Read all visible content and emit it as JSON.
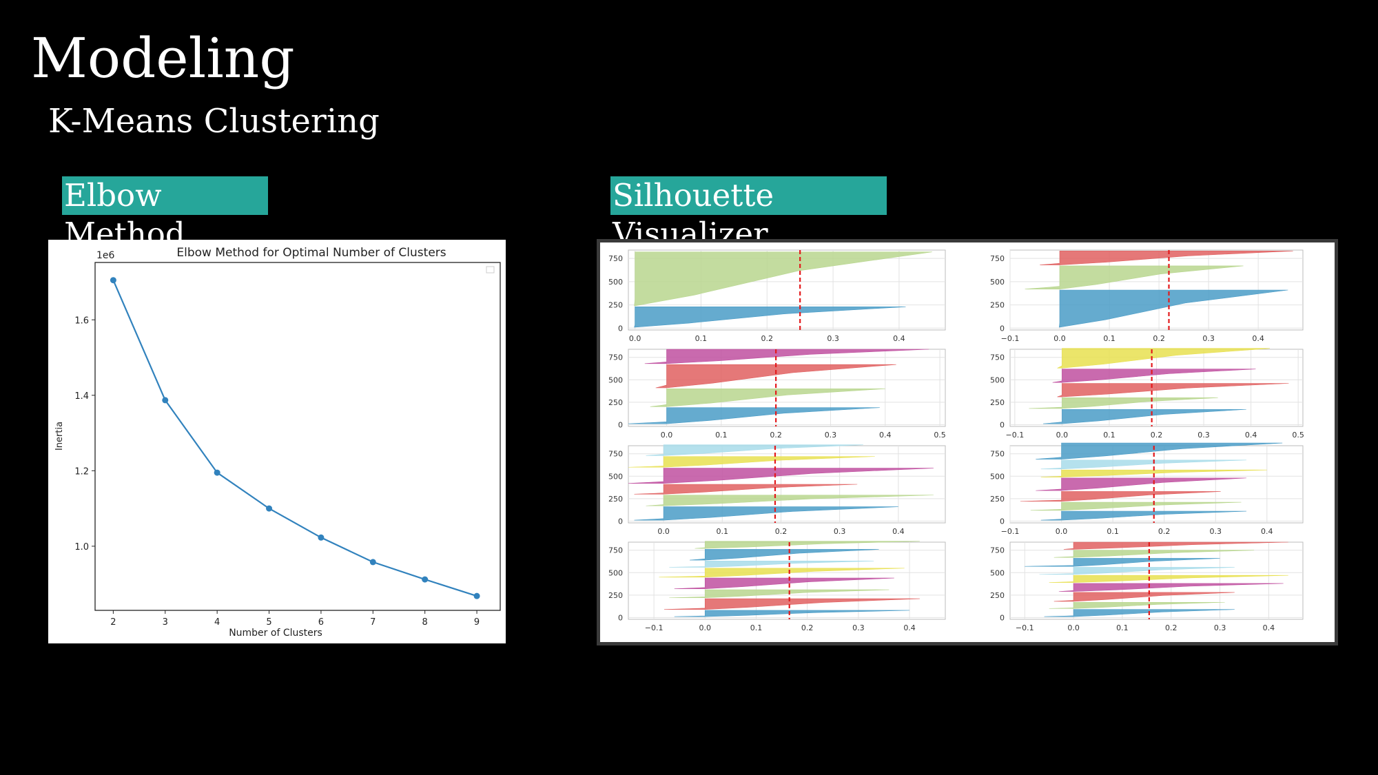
{
  "slide": {
    "title": "Modeling",
    "subtitle": "K-Means Clustering",
    "elbow_tag": "Elbow Method",
    "silhouette_tag": "Silhouette Visualizer"
  },
  "colors": {
    "background": "#000000",
    "tag_bg": "#26a69a",
    "line": "#3182bd",
    "mean_line": "#e31a1c",
    "cluster_blue": "#4a9cc7",
    "cluster_green": "#b8d68e",
    "cluster_red": "#e06060",
    "cluster_magenta": "#c050a0",
    "cluster_yellow": "#e8e050",
    "cluster_lightblue": "#a8dcea"
  },
  "chart_data": [
    {
      "type": "line",
      "title": "Elbow Method for Optimal Number of Clusters",
      "xlabel": "Number of Clusters",
      "ylabel": "Inertia",
      "y_offset_label": "1e6",
      "x": [
        2,
        3,
        4,
        5,
        6,
        7,
        8,
        9
      ],
      "values": [
        1.705,
        1.387,
        1.195,
        1.1,
        1.023,
        0.958,
        0.912,
        0.868
      ],
      "xlim": [
        1.65,
        9.45
      ],
      "ylim": [
        0.83,
        1.752
      ],
      "x_ticks": [
        "2",
        "3",
        "4",
        "5",
        "6",
        "7",
        "8",
        "9"
      ],
      "y_ticks": [
        1.0,
        1.2,
        1.4,
        1.6
      ],
      "y_tick_labels": [
        "1.0",
        "1.2",
        "1.4",
        "1.6"
      ],
      "marker": "circle",
      "grid": false
    },
    {
      "type": "silhouette",
      "y_ticks": [
        0,
        250,
        500,
        750
      ],
      "y_tick_labels": [
        "0",
        "250",
        "500",
        "750"
      ],
      "ylim": [
        -20,
        840
      ],
      "subplots": [
        {
          "xlim": [
            -0.01,
            0.47
          ],
          "x_ticks": [
            0.0,
            0.1,
            0.2,
            0.3,
            0.4
          ],
          "x_tick_labels": [
            "0.0",
            "0.1",
            "0.2",
            "0.3",
            "0.4"
          ],
          "mean": 0.25,
          "clusters": [
            {
              "size": 220,
              "max": 0.41,
              "min": -0.001,
              "color": "blue"
            },
            {
              "size": 580,
              "max": 0.45,
              "min": -0.001,
              "color": "green"
            }
          ]
        },
        {
          "xlim": [
            -0.1,
            0.49
          ],
          "x_ticks": [
            -0.1,
            0.0,
            0.1,
            0.2,
            0.3,
            0.4
          ],
          "x_tick_labels": [
            "−0.1",
            "0.0",
            "0.1",
            "0.2",
            "0.3",
            "0.4"
          ],
          "mean": 0.22,
          "clusters": [
            {
              "size": 400,
              "max": 0.46,
              "min": -0.001,
              "color": "blue"
            },
            {
              "size": 250,
              "max": 0.37,
              "min": -0.07,
              "color": "green"
            },
            {
              "size": 150,
              "max": 0.47,
              "min": -0.04,
              "color": "red"
            }
          ]
        },
        {
          "xlim": [
            -0.07,
            0.51
          ],
          "x_ticks": [
            0.0,
            0.1,
            0.2,
            0.3,
            0.4,
            0.5
          ],
          "x_tick_labels": [
            "0.0",
            "0.1",
            "0.2",
            "0.3",
            "0.4",
            "0.5"
          ],
          "mean": 0.2,
          "clusters": [
            {
              "size": 180,
              "max": 0.39,
              "min": -0.07,
              "color": "blue"
            },
            {
              "size": 200,
              "max": 0.4,
              "min": -0.03,
              "color": "green"
            },
            {
              "size": 260,
              "max": 0.42,
              "min": -0.02,
              "color": "red"
            },
            {
              "size": 160,
              "max": 0.48,
              "min": -0.04,
              "color": "magenta"
            }
          ]
        },
        {
          "xlim": [
            -0.11,
            0.51
          ],
          "x_ticks": [
            -0.1,
            0.0,
            0.1,
            0.2,
            0.3,
            0.4,
            0.5
          ],
          "x_tick_labels": [
            "−0.1",
            "0.0",
            "0.1",
            "0.2",
            "0.3",
            "0.4",
            "0.5"
          ],
          "mean": 0.19,
          "clusters": [
            {
              "size": 160,
              "max": 0.39,
              "min": -0.04,
              "color": "blue"
            },
            {
              "size": 120,
              "max": 0.33,
              "min": -0.07,
              "color": "green"
            },
            {
              "size": 150,
              "max": 0.48,
              "min": -0.01,
              "color": "red"
            },
            {
              "size": 150,
              "max": 0.41,
              "min": -0.02,
              "color": "magenta"
            },
            {
              "size": 220,
              "max": 0.44,
              "min": -0.01,
              "color": "yellow"
            }
          ]
        },
        {
          "xlim": [
            -0.06,
            0.48
          ],
          "x_ticks": [
            0.0,
            0.1,
            0.2,
            0.3,
            0.4
          ],
          "x_tick_labels": [
            "0.0",
            "0.1",
            "0.2",
            "0.3",
            "0.4"
          ],
          "mean": 0.19,
          "clusters": [
            {
              "size": 150,
              "max": 0.4,
              "min": -0.05,
              "color": "blue"
            },
            {
              "size": 120,
              "max": 0.46,
              "min": -0.03,
              "color": "green"
            },
            {
              "size": 110,
              "max": 0.33,
              "min": -0.05,
              "color": "red"
            },
            {
              "size": 170,
              "max": 0.46,
              "min": -0.06,
              "color": "magenta"
            },
            {
              "size": 120,
              "max": 0.36,
              "min": -0.06,
              "color": "yellow"
            },
            {
              "size": 120,
              "max": 0.34,
              "min": -0.03,
              "color": "lightblue"
            }
          ]
        },
        {
          "xlim": [
            -0.1,
            0.47
          ],
          "x_ticks": [
            -0.1,
            0.0,
            0.1,
            0.2,
            0.3,
            0.4
          ],
          "x_tick_labels": [
            "−0.1",
            "0.0",
            "0.1",
            "0.2",
            "0.3",
            "0.4"
          ],
          "mean": 0.18,
          "clusters": [
            {
              "size": 100,
              "max": 0.36,
              "min": -0.04,
              "color": "blue"
            },
            {
              "size": 90,
              "max": 0.35,
              "min": -0.06,
              "color": "green"
            },
            {
              "size": 110,
              "max": 0.31,
              "min": -0.08,
              "color": "red"
            },
            {
              "size": 140,
              "max": 0.36,
              "min": -0.05,
              "color": "magenta"
            },
            {
              "size": 80,
              "max": 0.4,
              "min": -0.04,
              "color": "yellow"
            },
            {
              "size": 100,
              "max": 0.36,
              "min": -0.04,
              "color": "lightblue"
            },
            {
              "size": 180,
              "max": 0.43,
              "min": -0.05,
              "color": "blue"
            }
          ]
        },
        {
          "xlim": [
            -0.15,
            0.47
          ],
          "x_ticks": [
            -0.1,
            0.0,
            0.1,
            0.2,
            0.3,
            0.4
          ],
          "x_tick_labels": [
            "−0.1",
            "0.0",
            "0.1",
            "0.2",
            "0.3",
            "0.4"
          ],
          "mean": 0.165,
          "clusters": [
            {
              "size": 70,
              "max": 0.4,
              "min": -0.06,
              "color": "blue"
            },
            {
              "size": 120,
              "max": 0.42,
              "min": -0.08,
              "color": "red"
            },
            {
              "size": 90,
              "max": 0.36,
              "min": -0.07,
              "color": "green"
            },
            {
              "size": 120,
              "max": 0.37,
              "min": -0.06,
              "color": "magenta"
            },
            {
              "size": 100,
              "max": 0.39,
              "min": -0.09,
              "color": "yellow"
            },
            {
              "size": 70,
              "max": 0.33,
              "min": -0.07,
              "color": "lightblue"
            },
            {
              "size": 120,
              "max": 0.34,
              "min": -0.03,
              "color": "blue"
            },
            {
              "size": 80,
              "max": 0.42,
              "min": -0.02,
              "color": "green"
            }
          ]
        },
        {
          "xlim": [
            -0.13,
            0.47
          ],
          "x_ticks": [
            -0.1,
            0.0,
            0.1,
            0.2,
            0.3,
            0.4
          ],
          "x_tick_labels": [
            "−0.1",
            "0.0",
            "0.1",
            "0.2",
            "0.3",
            "0.4"
          ],
          "mean": 0.155,
          "clusters": [
            {
              "size": 80,
              "max": 0.33,
              "min": -0.06,
              "color": "blue"
            },
            {
              "size": 70,
              "max": 0.31,
              "min": -0.05,
              "color": "green"
            },
            {
              "size": 100,
              "max": 0.33,
              "min": -0.04,
              "color": "red"
            },
            {
              "size": 90,
              "max": 0.43,
              "min": -0.03,
              "color": "magenta"
            },
            {
              "size": 80,
              "max": 0.44,
              "min": -0.05,
              "color": "yellow"
            },
            {
              "size": 80,
              "max": 0.33,
              "min": -0.07,
              "color": "lightblue"
            },
            {
              "size": 90,
              "max": 0.3,
              "min": -0.1,
              "color": "blue"
            },
            {
              "size": 80,
              "max": 0.37,
              "min": -0.04,
              "color": "green"
            },
            {
              "size": 80,
              "max": 0.44,
              "min": -0.02,
              "color": "red"
            }
          ]
        }
      ]
    }
  ]
}
